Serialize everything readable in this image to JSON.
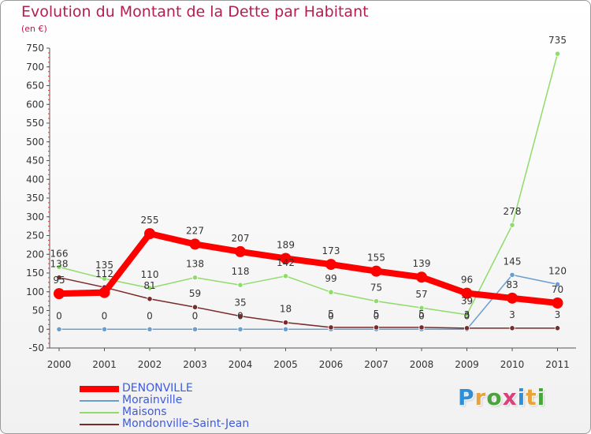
{
  "header": {
    "title": "Evolution du Montant de la Dette par Habitant",
    "subtitle": "(en €)"
  },
  "brand": {
    "letters": [
      "P",
      "r",
      "o",
      "x",
      "i",
      "t",
      "i"
    ],
    "colors": [
      "#2e8fd6",
      "#e8a33a",
      "#4aa33d",
      "#d8417a",
      "#2e8fd6",
      "#e8a33a",
      "#4aa33d"
    ]
  },
  "chart_data": {
    "type": "line",
    "categories": [
      "2000",
      "2001",
      "2002",
      "2003",
      "2004",
      "2005",
      "2006",
      "2007",
      "2008",
      "2009",
      "2010",
      "2011"
    ],
    "ylim": [
      -50,
      750
    ],
    "yticks": [
      -50,
      0,
      50,
      100,
      150,
      200,
      250,
      300,
      350,
      400,
      450,
      500,
      550,
      600,
      650,
      700,
      750
    ],
    "grid": false,
    "legend_position": "bottom-left",
    "series": [
      {
        "name": "DENONVILLE",
        "color": "#ff0000",
        "values": [
          95,
          98,
          255,
          227,
          207,
          189,
          173,
          155,
          139,
          96,
          83,
          70
        ],
        "emphasis": true
      },
      {
        "name": "Morainville",
        "color": "#6a9ed0",
        "values": [
          0,
          0,
          0,
          0,
          0,
          0,
          0,
          0,
          0,
          0,
          145,
          120
        ]
      },
      {
        "name": "Maisons",
        "color": "#8fdc6a",
        "values": [
          166,
          135,
          110,
          138,
          118,
          142,
          99,
          75,
          57,
          39,
          278,
          735
        ]
      },
      {
        "name": "Mondonville-Saint-Jean",
        "color": "#7a2a2a",
        "values": [
          138,
          112,
          81,
          59,
          35,
          18,
          5,
          5,
          5,
          3,
          3,
          3
        ]
      }
    ],
    "data_labels": {
      "DENONVILLE": [
        "95",
        "",
        "255",
        "227",
        "207",
        "189",
        "173",
        "155",
        "139",
        "96",
        "83",
        "70"
      ],
      "Morainville": [
        "0",
        "0",
        "0",
        "0",
        "0",
        "",
        "0",
        "0",
        "0",
        "0",
        "145",
        "120"
      ],
      "Maisons": [
        "166",
        "135",
        "110",
        "138",
        "118",
        "142",
        "99",
        "75",
        "57",
        "39",
        "278",
        "735"
      ],
      "Mondonville-Saint-Jean": [
        "138",
        "112",
        "81",
        "59",
        "35",
        "18",
        "5",
        "5",
        "5",
        "3",
        "3",
        "3"
      ]
    }
  }
}
